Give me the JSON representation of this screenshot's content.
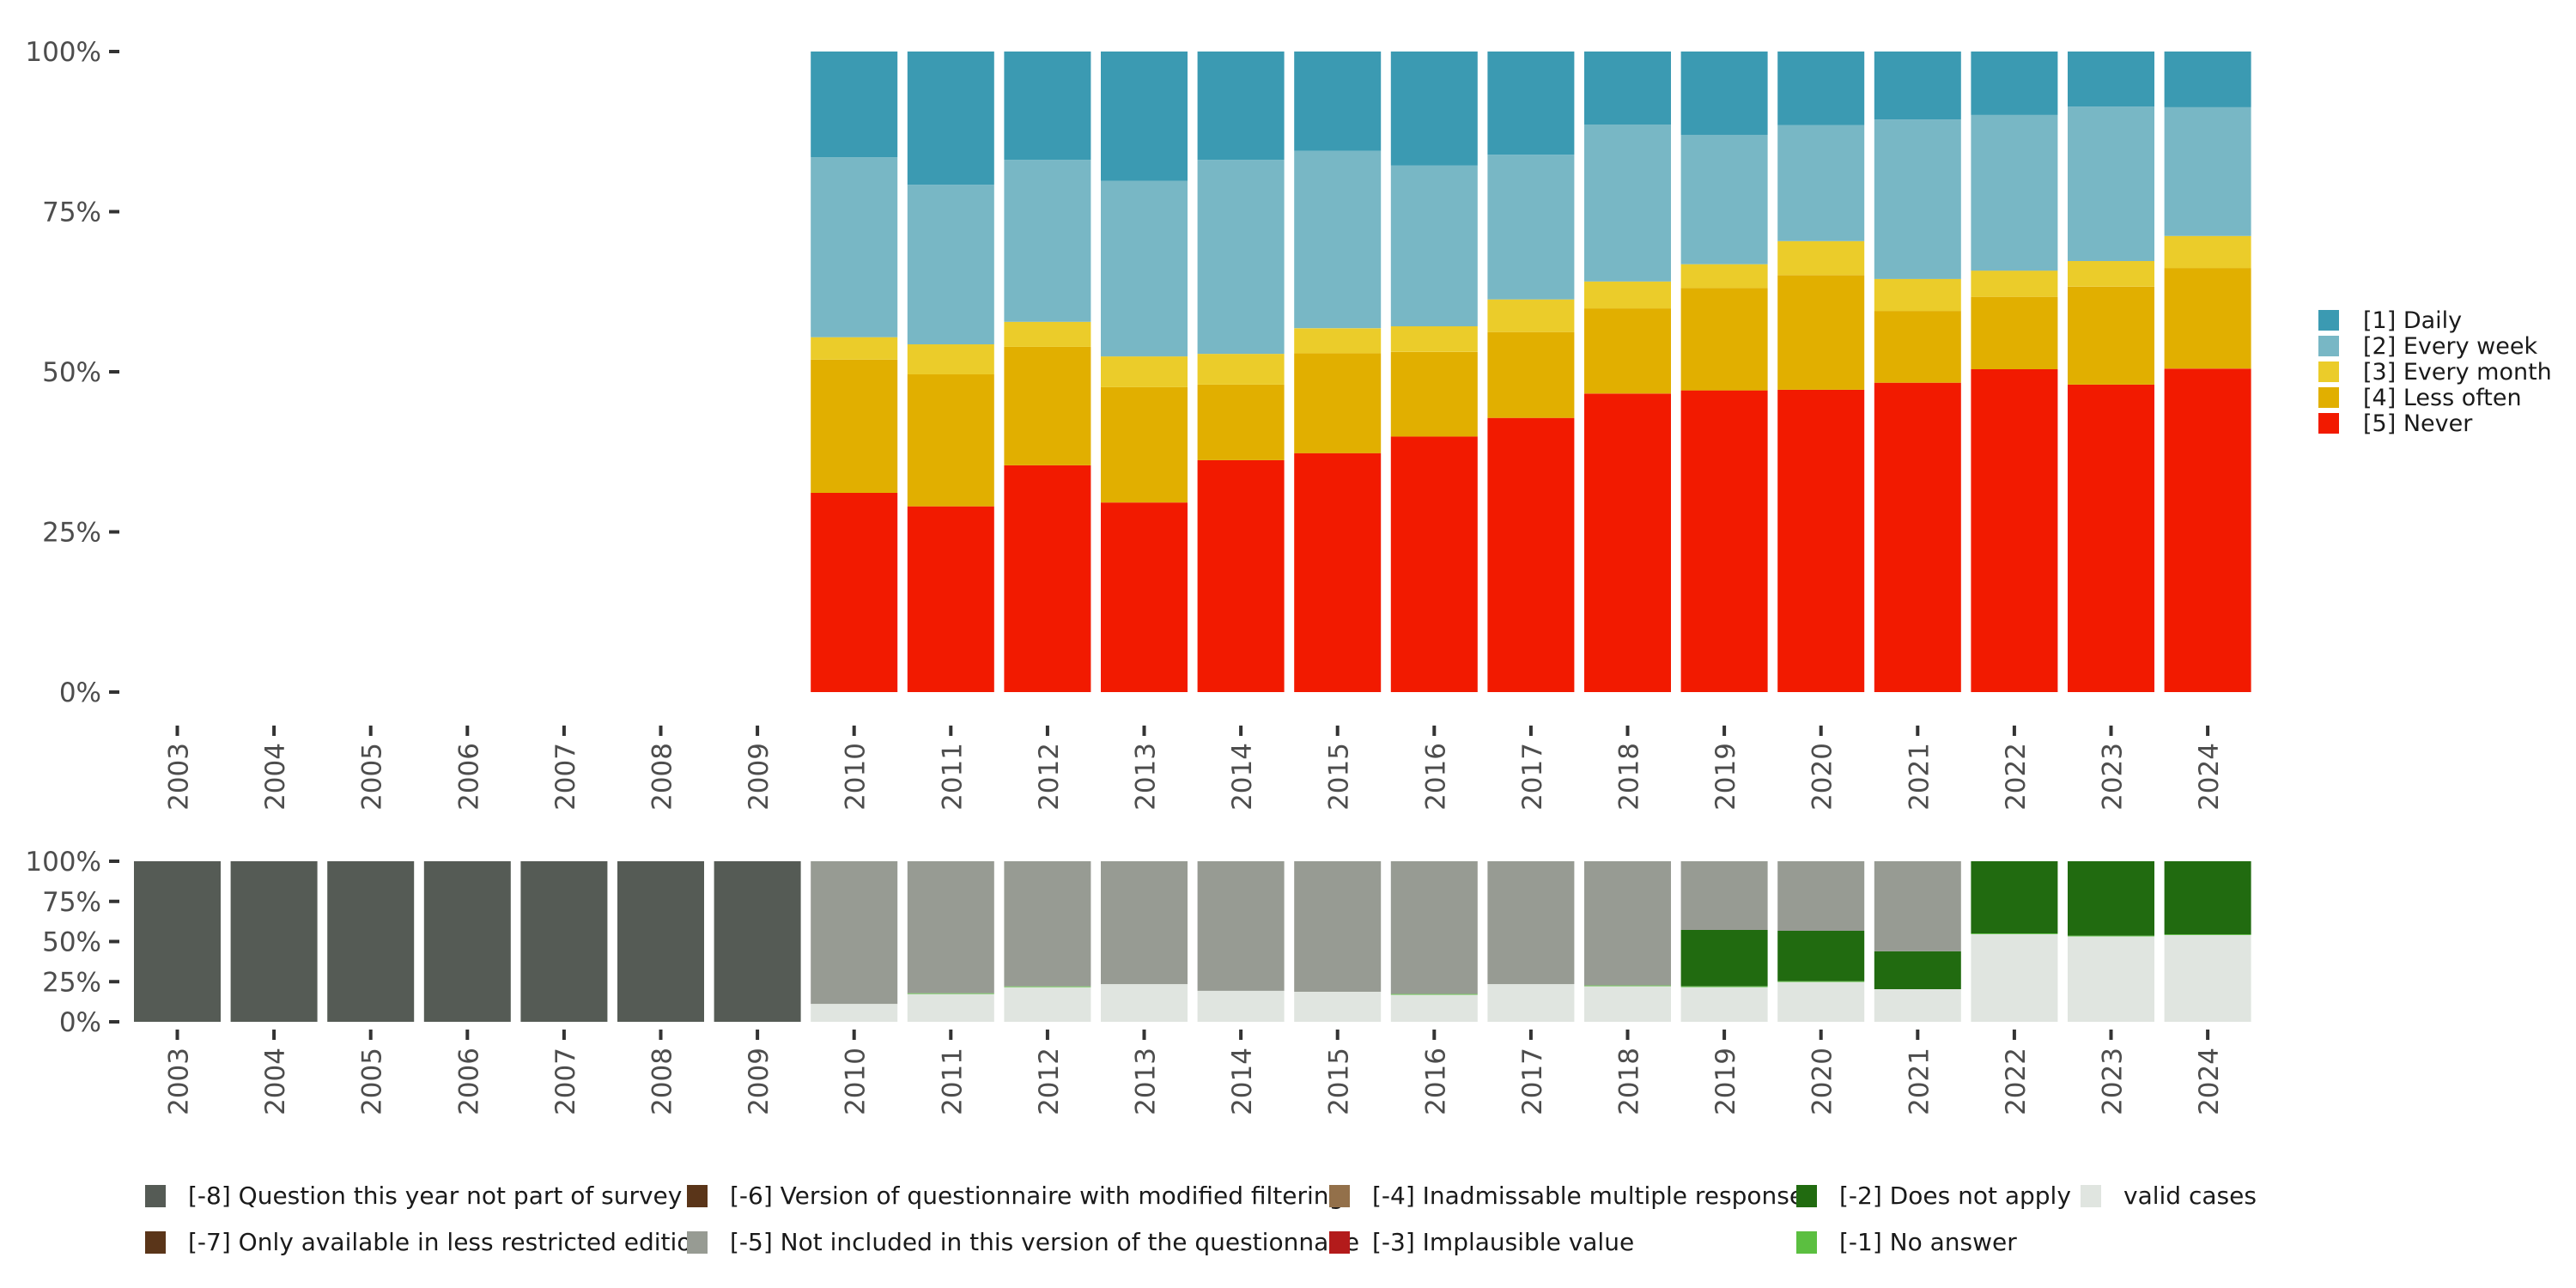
{
  "chart_data": [
    {
      "id": "upper",
      "type": "bar",
      "stacked": true,
      "normalized": true,
      "title": "",
      "xlabel": "",
      "ylabel": "",
      "ylim": [
        0,
        100
      ],
      "grid": false,
      "y_ticks": [
        "0%",
        "25%",
        "50%",
        "75%",
        "100%"
      ],
      "y_tick_values": [
        0,
        25,
        50,
        75,
        100
      ],
      "categories": [
        "2003",
        "2004",
        "2005",
        "2006",
        "2007",
        "2008",
        "2009",
        "2010",
        "2011",
        "2012",
        "2013",
        "2014",
        "2015",
        "2016",
        "2017",
        "2018",
        "2019",
        "2020",
        "2021",
        "2022",
        "2023",
        "2024"
      ],
      "legend_position": "right",
      "series": [
        {
          "name": "[5] Never",
          "color": "#F21A00",
          "values": [
            null,
            null,
            null,
            null,
            null,
            null,
            null,
            31.1,
            29.0,
            35.4,
            29.6,
            36.2,
            37.3,
            39.9,
            42.8,
            46.6,
            47.1,
            47.2,
            48.3,
            50.4,
            48.0,
            50.5
          ]
        },
        {
          "name": "[4] Less often",
          "color": "#E1AF00",
          "values": [
            null,
            null,
            null,
            null,
            null,
            null,
            null,
            20.8,
            20.6,
            18.5,
            18.0,
            11.8,
            15.6,
            13.2,
            13.4,
            13.3,
            16.0,
            17.9,
            11.2,
            11.3,
            15.3,
            15.7
          ]
        },
        {
          "name": "[3] Every month",
          "color": "#EBCC2A",
          "values": [
            null,
            null,
            null,
            null,
            null,
            null,
            null,
            3.5,
            4.7,
            3.9,
            4.8,
            4.8,
            3.9,
            4.0,
            5.1,
            4.2,
            3.7,
            5.3,
            5.0,
            4.1,
            4.0,
            5.0
          ]
        },
        {
          "name": "[2] Every week",
          "color": "#78B7C5",
          "values": [
            null,
            null,
            null,
            null,
            null,
            null,
            null,
            28.1,
            24.9,
            25.3,
            27.4,
            30.3,
            27.7,
            25.1,
            22.6,
            24.5,
            20.2,
            18.1,
            24.9,
            24.3,
            24.1,
            20.1
          ]
        },
        {
          "name": "[1] Daily",
          "color": "#3B9AB2",
          "values": [
            null,
            null,
            null,
            null,
            null,
            null,
            null,
            16.5,
            20.8,
            16.9,
            20.2,
            16.9,
            15.5,
            17.8,
            16.1,
            11.4,
            13.0,
            11.5,
            10.6,
            9.9,
            8.6,
            8.7
          ]
        }
      ],
      "legend": [
        {
          "label": "[1] Daily",
          "color": "#3B9AB2"
        },
        {
          "label": "[2] Every week",
          "color": "#78B7C5"
        },
        {
          "label": "[3] Every month",
          "color": "#EBCC2A"
        },
        {
          "label": "[4] Less often",
          "color": "#E1AF00"
        },
        {
          "label": "[5] Never",
          "color": "#F21A00"
        }
      ]
    },
    {
      "id": "lower",
      "type": "bar",
      "stacked": true,
      "normalized": true,
      "title": "",
      "xlabel": "",
      "ylabel": "",
      "ylim": [
        0,
        100
      ],
      "grid": false,
      "y_ticks": [
        "0%",
        "25%",
        "50%",
        "75%",
        "100%"
      ],
      "y_tick_values": [
        0,
        25,
        50,
        75,
        100
      ],
      "categories": [
        "2003",
        "2004",
        "2005",
        "2006",
        "2007",
        "2008",
        "2009",
        "2010",
        "2011",
        "2012",
        "2013",
        "2014",
        "2015",
        "2016",
        "2017",
        "2018",
        "2019",
        "2020",
        "2021",
        "2022",
        "2023",
        "2024"
      ],
      "legend_position": "bottom",
      "series": [
        {
          "name": "valid cases",
          "color": "#E0E5E0",
          "values": [
            0,
            0,
            0,
            0,
            0,
            0,
            0,
            11.2,
            17.3,
            21.6,
            23.5,
            19.3,
            18.7,
            16.8,
            23.5,
            22.2,
            21.6,
            24.8,
            20.3,
            54.6,
            53.2,
            54.0
          ]
        },
        {
          "name": "[-1] No answer",
          "color": "#5BBF40",
          "values": [
            0,
            0,
            0,
            0,
            0,
            0,
            0,
            0,
            0.5,
            0.5,
            0,
            0,
            0,
            0.5,
            0,
            0.5,
            0.5,
            0.5,
            0,
            0.5,
            0.5,
            0.5
          ]
        },
        {
          "name": "[-2] Does not apply",
          "color": "#216B10",
          "values": [
            0,
            0,
            0,
            0,
            0,
            0,
            0,
            0,
            0,
            0,
            0,
            0,
            0,
            0,
            0,
            0,
            35.1,
            31.4,
            23.6,
            44.9,
            46.3,
            45.5
          ]
        },
        {
          "name": "[-5] Not included in this version of the questionnaire",
          "color": "#979B93",
          "values": [
            0,
            0,
            0,
            0,
            0,
            0,
            0,
            88.8,
            82.2,
            77.9,
            76.5,
            80.7,
            81.3,
            82.7,
            76.5,
            77.3,
            42.8,
            43.3,
            56.1,
            0,
            0,
            0
          ]
        },
        {
          "name": "[-8] Question this year not part of survey",
          "color": "#555B55",
          "values": [
            100,
            100,
            100,
            100,
            100,
            100,
            100,
            0,
            0,
            0,
            0,
            0,
            0,
            0,
            0,
            0,
            0,
            0,
            0,
            0,
            0,
            0
          ]
        }
      ],
      "legend": [
        {
          "label": "[-8] Question this year not part of survey",
          "color": "#555B55"
        },
        {
          "label": "[-7] Only available in less restricted edition",
          "color": "#5A3519"
        },
        {
          "label": "[-6] Version of questionnaire with modified filtering",
          "color": "#5A3519"
        },
        {
          "label": "[-5] Not included in this version of the questionnaire",
          "color": "#979B93"
        },
        {
          "label": "[-4] Inadmissable multiple response",
          "color": "#93704A"
        },
        {
          "label": "[-3] Implausible value",
          "color": "#B31B1B"
        },
        {
          "label": "[-2] Does not apply",
          "color": "#216B10"
        },
        {
          "label": "[-1] No answer",
          "color": "#5BBF40"
        },
        {
          "label": "valid cases",
          "color": "#E0E5E0"
        }
      ]
    }
  ]
}
